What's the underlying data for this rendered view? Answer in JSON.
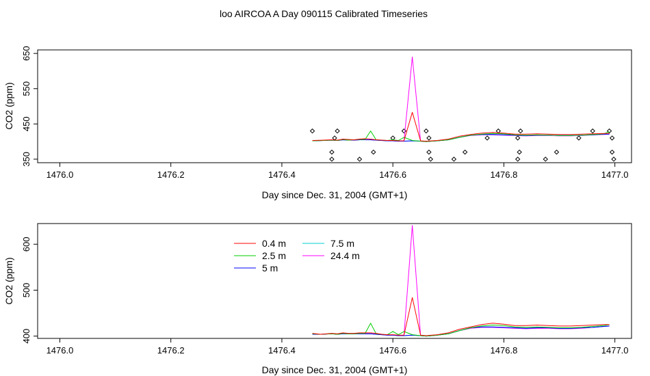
{
  "figure": {
    "title": "loo AIRCOA A  Day 090115  Calibrated Timeseries"
  },
  "series_styles": [
    {
      "name": "0.4 m",
      "color": "#ff0000"
    },
    {
      "name": "2.5 m",
      "color": "#00cd00"
    },
    {
      "name": "5 m",
      "color": "#0000ff"
    },
    {
      "name": "7.5 m",
      "color": "#00cccc"
    },
    {
      "name": "24.4 m",
      "color": "#ff00ff"
    }
  ],
  "legend": {
    "column1": [
      "0.4 m",
      "2.5 m",
      "5 m"
    ],
    "column2": [
      "7.5 m",
      "24.4 m"
    ]
  },
  "chart_data": [
    {
      "type": "line",
      "xlabel": "Day since Dec. 31, 2004 (GMT+1)",
      "ylabel": "CO2 (ppm)",
      "xlim": [
        1475.96,
        1477.03
      ],
      "ylim": [
        340,
        660
      ],
      "xticks": [
        1476.0,
        1476.2,
        1476.4,
        1476.6,
        1476.8,
        1477.0
      ],
      "xtick_labels": [
        "1476.0",
        "1476.2",
        "1476.4",
        "1476.6",
        "1476.8",
        "1477.0"
      ],
      "yticks": [
        350,
        450,
        550,
        650
      ],
      "ytick_labels": [
        "350",
        "450",
        "550",
        "650"
      ],
      "x": [
        1476.455,
        1476.475,
        1476.49,
        1476.5,
        1476.51,
        1476.52,
        1476.53,
        1476.54,
        1476.55,
        1476.56,
        1476.57,
        1476.58,
        1476.59,
        1476.6,
        1476.61,
        1476.62,
        1476.635,
        1476.65,
        1476.66,
        1476.67,
        1476.68,
        1476.7,
        1476.72,
        1476.74,
        1476.76,
        1476.78,
        1476.8,
        1476.82,
        1476.84,
        1476.86,
        1476.88,
        1476.9,
        1476.92,
        1476.94,
        1476.96,
        1476.98,
        1476.99
      ],
      "series": [
        {
          "name": "0.4 m",
          "values": [
            403,
            404,
            405,
            404,
            407,
            406,
            405,
            407,
            408,
            407,
            405,
            404,
            403,
            403,
            402,
            402,
            483,
            402,
            401,
            402,
            403,
            407,
            415,
            420,
            424,
            426,
            424,
            421,
            421,
            422,
            421,
            420,
            420,
            421,
            422,
            423,
            423
          ]
        },
        {
          "name": "2.5 m",
          "values": [
            402,
            403,
            404,
            403,
            406,
            404,
            405,
            406,
            406,
            430,
            405,
            404,
            403,
            405,
            403,
            412,
            403,
            401,
            400,
            401,
            402,
            405,
            412,
            418,
            421,
            423,
            422,
            419,
            418,
            419,
            418,
            417,
            417,
            418,
            420,
            422,
            428
          ]
        },
        {
          "name": "5 m",
          "values": [
            402,
            403,
            404,
            403,
            405,
            404,
            404,
            405,
            405,
            405,
            404,
            403,
            402,
            402,
            401,
            401,
            402,
            401,
            400,
            401,
            402,
            405,
            412,
            418,
            420,
            420,
            419,
            418,
            417,
            418,
            418,
            417,
            417,
            418,
            419,
            421,
            421
          ]
        },
        {
          "name": "7.5 m",
          "values": [
            402,
            403,
            404,
            403,
            405,
            404,
            404,
            405,
            405,
            405,
            404,
            403,
            402,
            402,
            401,
            401,
            402,
            401,
            400,
            401,
            402,
            405,
            412,
            418,
            420,
            420,
            419,
            418,
            417,
            418,
            418,
            417,
            417,
            418,
            419,
            421,
            421
          ]
        },
        {
          "name": "24.4 m",
          "values": [
            402,
            403,
            404,
            403,
            405,
            404,
            404,
            405,
            405,
            405,
            404,
            403,
            402,
            402,
            401,
            401,
            640,
            401,
            400,
            401,
            402,
            405,
            412,
            417,
            419,
            419,
            418,
            417,
            416,
            417,
            417,
            416,
            416,
            417,
            419,
            420,
            421
          ]
        }
      ],
      "markers": {
        "shape": "diamond",
        "points": [
          [
            1476.455,
            430
          ],
          [
            1476.49,
            350
          ],
          [
            1476.49,
            370
          ],
          [
            1476.495,
            410
          ],
          [
            1476.5,
            430
          ],
          [
            1476.54,
            350
          ],
          [
            1476.565,
            370
          ],
          [
            1476.6,
            410
          ],
          [
            1476.62,
            430
          ],
          [
            1476.66,
            430
          ],
          [
            1476.665,
            410
          ],
          [
            1476.665,
            370
          ],
          [
            1476.668,
            350
          ],
          [
            1476.71,
            350
          ],
          [
            1476.73,
            370
          ],
          [
            1476.77,
            410
          ],
          [
            1476.79,
            430
          ],
          [
            1476.825,
            410
          ],
          [
            1476.825,
            350
          ],
          [
            1476.828,
            370
          ],
          [
            1476.83,
            430
          ],
          [
            1476.875,
            350
          ],
          [
            1476.895,
            370
          ],
          [
            1476.935,
            410
          ],
          [
            1476.96,
            430
          ],
          [
            1476.99,
            430
          ],
          [
            1476.995,
            410
          ],
          [
            1476.995,
            370
          ],
          [
            1476.998,
            350
          ]
        ]
      }
    },
    {
      "type": "line",
      "xlabel": "Day since Dec. 31, 2004 (GMT+1)",
      "ylabel": "CO2 (ppm)",
      "xlim": [
        1475.96,
        1477.03
      ],
      "ylim": [
        395,
        645
      ],
      "xticks": [
        1476.0,
        1476.2,
        1476.4,
        1476.6,
        1476.8,
        1477.0
      ],
      "xtick_labels": [
        "1476.0",
        "1476.2",
        "1476.4",
        "1476.6",
        "1476.8",
        "1477.0"
      ],
      "yticks": [
        400,
        500,
        600
      ],
      "ytick_labels": [
        "400",
        "500",
        "600"
      ],
      "x": [
        1476.455,
        1476.47,
        1476.49,
        1476.5,
        1476.51,
        1476.52,
        1476.53,
        1476.54,
        1476.55,
        1476.56,
        1476.57,
        1476.58,
        1476.59,
        1476.6,
        1476.61,
        1476.62,
        1476.635,
        1476.65,
        1476.66,
        1476.67,
        1476.68,
        1476.7,
        1476.72,
        1476.74,
        1476.76,
        1476.78,
        1476.8,
        1476.82,
        1476.84,
        1476.86,
        1476.88,
        1476.9,
        1476.92,
        1476.94,
        1476.96,
        1476.98,
        1476.99
      ],
      "series": [
        {
          "name": "0.4 m",
          "values": [
            406,
            404,
            406,
            405,
            407,
            406,
            406,
            407,
            407,
            407,
            406,
            404,
            403,
            403,
            402,
            402,
            484,
            402,
            401,
            402,
            403,
            407,
            415,
            420,
            425,
            428,
            426,
            423,
            423,
            424,
            423,
            422,
            422,
            423,
            424,
            425,
            425
          ]
        },
        {
          "name": "2.5 m",
          "values": [
            405,
            404,
            405,
            404,
            406,
            405,
            405,
            406,
            406,
            428,
            405,
            404,
            403,
            410,
            403,
            410,
            403,
            401,
            400,
            401,
            402,
            405,
            412,
            418,
            422,
            424,
            423,
            420,
            419,
            420,
            419,
            418,
            418,
            419,
            421,
            423,
            425
          ]
        },
        {
          "name": "5 m",
          "values": [
            404,
            404,
            405,
            404,
            405,
            405,
            405,
            405,
            405,
            405,
            404,
            403,
            402,
            402,
            401,
            401,
            402,
            401,
            400,
            401,
            402,
            405,
            412,
            418,
            420,
            420,
            419,
            418,
            417,
            418,
            418,
            417,
            417,
            418,
            419,
            421,
            422
          ]
        },
        {
          "name": "7.5 m",
          "values": [
            404,
            404,
            405,
            404,
            405,
            405,
            405,
            405,
            405,
            405,
            404,
            403,
            402,
            402,
            401,
            401,
            402,
            401,
            400,
            401,
            402,
            405,
            412,
            418,
            420,
            420,
            419,
            418,
            417,
            418,
            418,
            417,
            417,
            418,
            419,
            421,
            422
          ]
        },
        {
          "name": "24.4 m",
          "values": [
            404,
            404,
            405,
            404,
            405,
            405,
            405,
            405,
            405,
            405,
            404,
            403,
            402,
            402,
            401,
            401,
            641,
            401,
            400,
            401,
            402,
            405,
            412,
            417,
            419,
            419,
            418,
            417,
            416,
            417,
            417,
            416,
            416,
            417,
            419,
            421,
            422
          ]
        }
      ]
    }
  ]
}
